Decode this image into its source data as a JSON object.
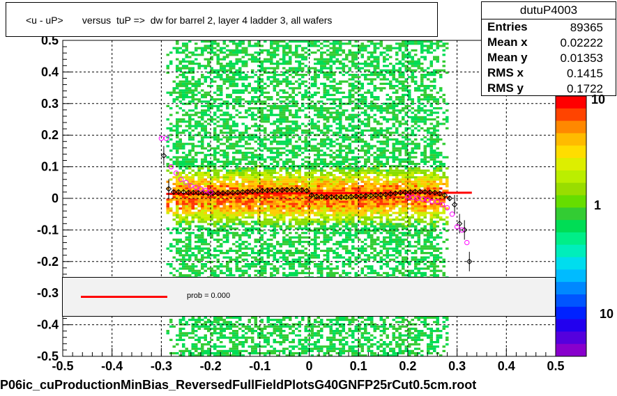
{
  "title": "<u - uP>       versus  tuP =>  dw for barrel 2, layer 4 ladder 3, all wafers",
  "stats": {
    "name": "dutuP4003",
    "rows": [
      {
        "key": "Entries",
        "value": "89365"
      },
      {
        "key": "Mean x",
        "value": "0.02222"
      },
      {
        "key": "Mean y",
        "value": "0.01353"
      },
      {
        "key": "RMS x",
        "value": "0.1415"
      },
      {
        "key": "RMS y",
        "value": "0.1722"
      }
    ]
  },
  "legend": {
    "fit_label": "prob = 0.000",
    "fit_color": "#ff0000"
  },
  "footer": "P06ic_cuProductionMinBias_ReversedFullFieldPlotsG40GNFP25rCut0.5cm.root",
  "colors": {
    "fit": "#ff0000",
    "profile_black": "#000000",
    "profile_magenta": "#ff00ff",
    "legend_bg": "#f2f2f2"
  },
  "chart_data": {
    "type": "heatmap",
    "xlim": [
      -0.5,
      0.5
    ],
    "ylim": [
      -0.5,
      0.5
    ],
    "x_ticks": [
      "-0.5",
      "-0.4",
      "-0.3",
      "-0.2",
      "-0.1",
      "0",
      "0.1",
      "0.2",
      "0.3",
      "0.4",
      "0.5"
    ],
    "y_ticks": [
      "-0.5",
      "-0.4",
      "-0.3",
      "-0.2",
      "-0.1",
      "0",
      "0.1",
      "0.2",
      "0.3",
      "0.4",
      "0.5"
    ],
    "z_scale": "log",
    "z_labels": [
      "10",
      "1",
      "10"
    ],
    "grid": true,
    "heatmap_x_range": [
      -0.29,
      0.28
    ],
    "fit_line": {
      "x": [
        -0.29,
        0.33
      ],
      "y": [
        0.014,
        0.018
      ],
      "color": "#ff0000"
    },
    "profile_black": {
      "x": [
        -0.295,
        -0.285,
        -0.275,
        -0.265,
        -0.255,
        -0.245,
        -0.235,
        -0.225,
        -0.215,
        -0.205,
        -0.195,
        -0.185,
        -0.175,
        -0.165,
        -0.155,
        -0.145,
        -0.135,
        -0.125,
        -0.115,
        -0.105,
        -0.095,
        -0.085,
        -0.075,
        -0.065,
        -0.055,
        -0.045,
        -0.035,
        -0.025,
        -0.015,
        -0.005,
        0.005,
        0.015,
        0.025,
        0.035,
        0.045,
        0.055,
        0.065,
        0.075,
        0.085,
        0.095,
        0.105,
        0.115,
        0.125,
        0.135,
        0.145,
        0.155,
        0.165,
        0.175,
        0.185,
        0.195,
        0.205,
        0.215,
        0.225,
        0.235,
        0.245,
        0.255,
        0.265,
        0.275,
        0.285,
        0.295,
        0.305,
        0.315,
        0.325
      ],
      "y": [
        0.135,
        0.03,
        0.02,
        0.02,
        0.02,
        0.018,
        0.018,
        0.017,
        0.017,
        0.016,
        0.016,
        0.016,
        0.017,
        0.018,
        0.018,
        0.019,
        0.02,
        0.021,
        0.022,
        0.023,
        0.024,
        0.025,
        0.025,
        0.026,
        0.026,
        0.027,
        0.027,
        0.027,
        0.026,
        0.024,
        0.01,
        0.006,
        0.005,
        0.004,
        0.004,
        0.004,
        0.004,
        0.004,
        0.005,
        0.006,
        0.007,
        0.008,
        0.009,
        0.01,
        0.011,
        0.012,
        0.014,
        0.016,
        0.018,
        0.019,
        0.02,
        0.021,
        0.021,
        0.02,
        0.019,
        0.018,
        0.015,
        0.01,
        0.0,
        -0.02,
        -0.08,
        -0.1,
        -0.2
      ]
    },
    "profile_magenta": {
      "x": [
        -0.3,
        -0.29,
        -0.28,
        -0.27,
        -0.26,
        -0.25,
        -0.24,
        -0.23,
        -0.22,
        -0.21,
        -0.2,
        0.2,
        0.21,
        0.22,
        0.23,
        0.24,
        0.25,
        0.26,
        0.27,
        0.28,
        0.29,
        0.3,
        0.31,
        0.32
      ],
      "y": [
        0.19,
        0.19,
        0.1,
        0.08,
        0.06,
        0.05,
        0.04,
        0.035,
        0.03,
        0.025,
        0.02,
        0.005,
        0.003,
        0.0,
        -0.002,
        -0.005,
        -0.01,
        -0.01,
        -0.02,
        -0.03,
        -0.05,
        -0.09,
        -0.1,
        -0.14
      ]
    }
  }
}
